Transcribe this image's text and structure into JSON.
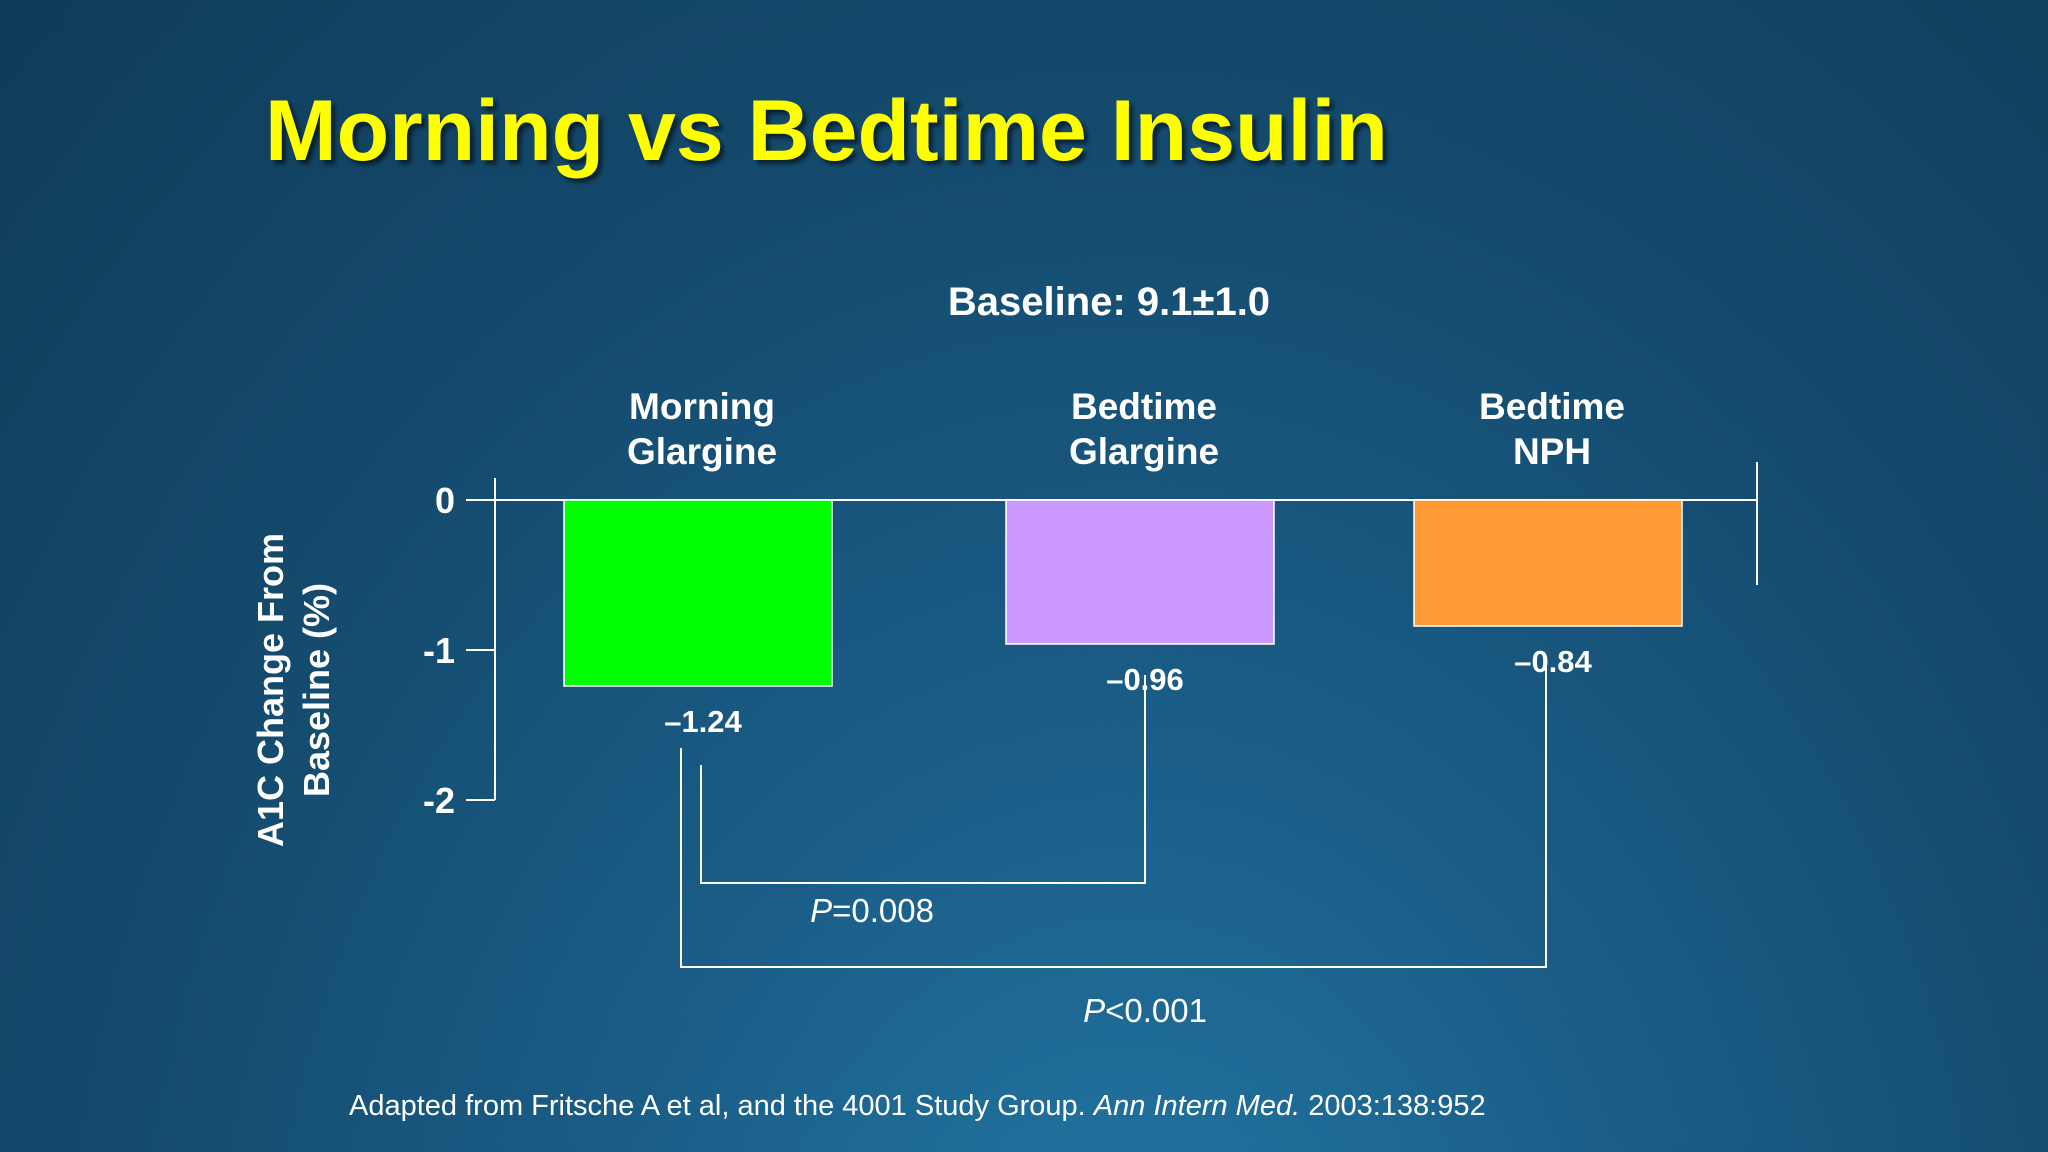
{
  "title": "Morning vs Bedtime Insulin",
  "chart_data": {
    "type": "bar",
    "subtitle": "Baseline: 9.1±1.0",
    "ylabel_lines": [
      "A1C Change From",
      "Baseline (%)"
    ],
    "ylim": [
      -2,
      0
    ],
    "yticks": [
      0,
      -1,
      -2
    ],
    "ytick_labels": [
      "0",
      "-1",
      "-2"
    ],
    "categories": [
      {
        "lines": [
          "Morning",
          "Glargine"
        ]
      },
      {
        "lines": [
          "Bedtime",
          "Glargine"
        ]
      },
      {
        "lines": [
          "Bedtime",
          "NPH"
        ]
      }
    ],
    "values": [
      -1.24,
      -0.96,
      -0.84
    ],
    "value_labels": [
      "–1.24",
      "–0.96",
      "–0.84"
    ],
    "colors": [
      "#00ff00",
      "#cc99ff",
      "#ff9933"
    ],
    "comparisons": [
      {
        "from": 0,
        "to": 1,
        "label_p": "P",
        "label_rest": "=0.008"
      },
      {
        "from": 0,
        "to": 2,
        "label_p": "P",
        "label_rest": "<0.001"
      }
    ]
  },
  "citation": {
    "prefix": "Adapted from Fritsche A et al, and the 4001 Study Group. ",
    "journal": "Ann Intern Med.",
    "suffix": " 2003:138:952"
  }
}
